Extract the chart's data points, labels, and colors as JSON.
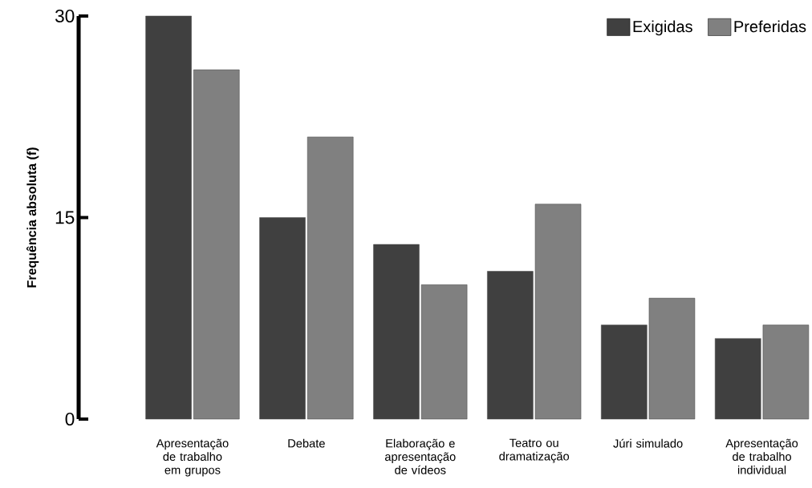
{
  "chart_data": {
    "type": "bar",
    "ylabel": "Frequência absoluta (f)",
    "categories": [
      "Apresentação de trabalho em grupos",
      "Debate",
      "Elaboração e apresentação de vídeos",
      "Teatro ou dramatização",
      "Júri simulado",
      "Apresentação de trabalho individual"
    ],
    "series": [
      {
        "name": "Exigidas",
        "color": "#404040",
        "values": [
          30,
          15,
          13,
          11,
          7,
          6
        ]
      },
      {
        "name": "Preferidas",
        "color": "#808080",
        "values": [
          26,
          21,
          10,
          16,
          9,
          7
        ]
      }
    ],
    "ylim": [
      0,
      30
    ],
    "yticks": [
      0,
      15,
      30
    ],
    "legend": "top right"
  }
}
